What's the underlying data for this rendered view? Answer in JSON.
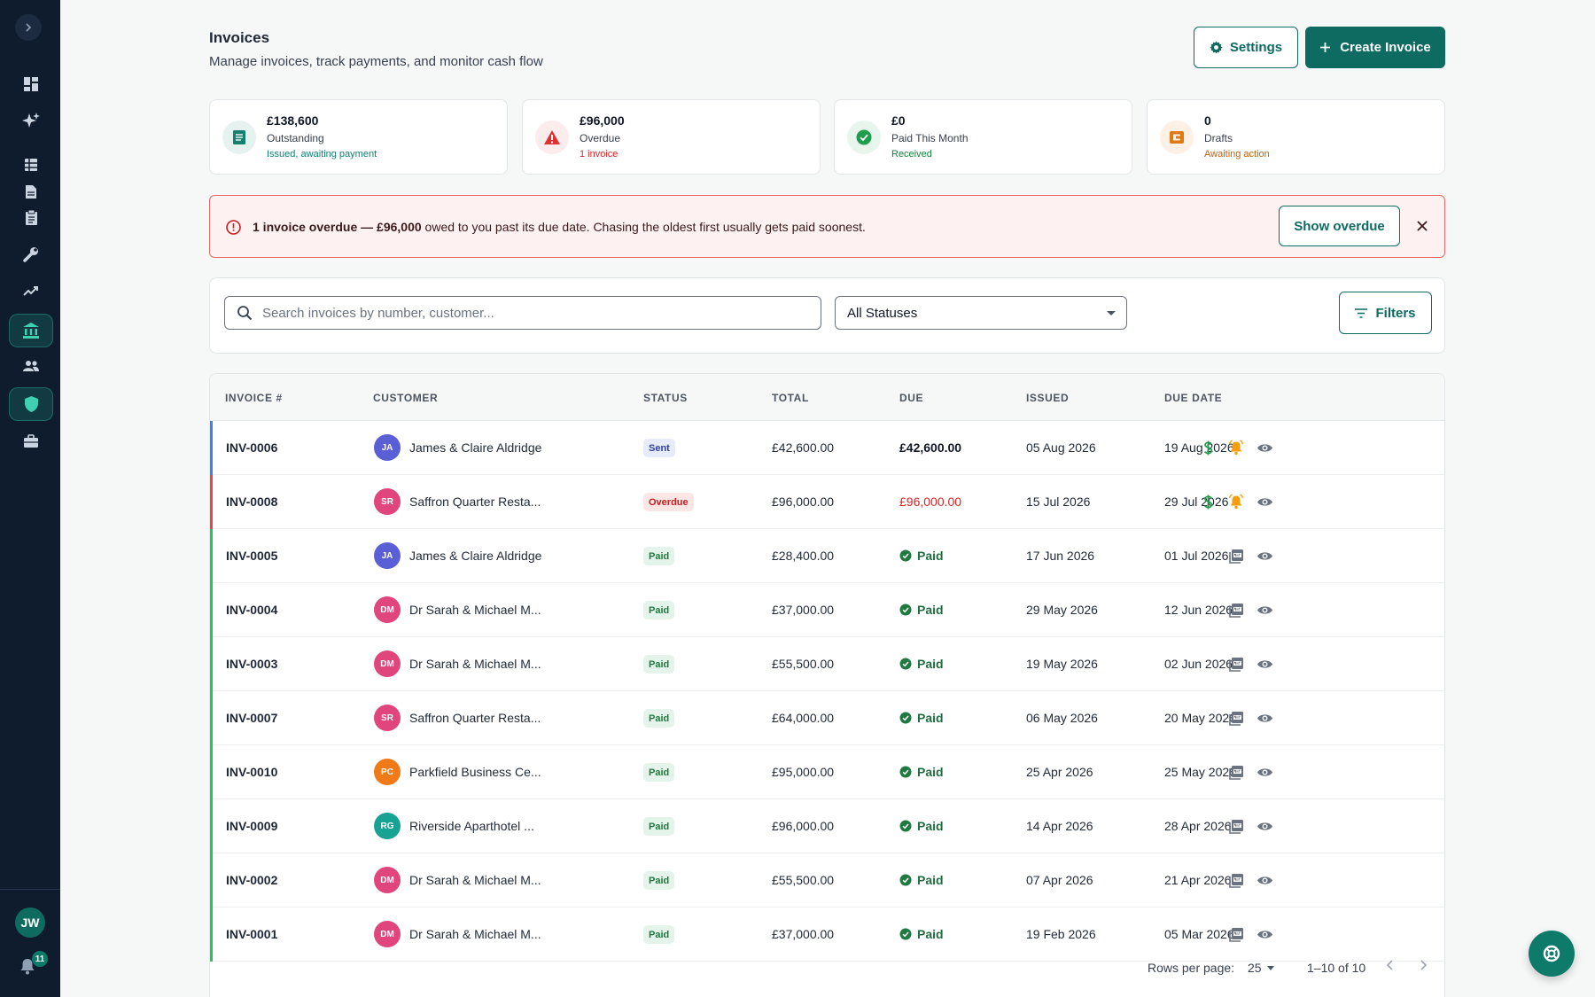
{
  "header": {
    "title": "Invoices",
    "subtitle": "Manage invoices, track payments, and monitor cash flow",
    "settings_label": "Settings",
    "create_label": "Create Invoice"
  },
  "sidebar": {
    "user_initials": "JW",
    "notification_count": "11"
  },
  "stats": [
    {
      "value": "£138,600",
      "label": "Outstanding",
      "note": "Issued, awaiting payment"
    },
    {
      "value": "£96,000",
      "label": "Overdue",
      "note": "1 invoice"
    },
    {
      "value": "£0",
      "label": "Paid This Month",
      "note": "Received"
    },
    {
      "value": "0",
      "label": "Drafts",
      "note": "Awaiting action"
    }
  ],
  "alert": {
    "bold": "1 invoice overdue — £96,000",
    "text": " owed to you past its due date. Chasing the oldest first usually gets paid soonest.",
    "button": "Show overdue"
  },
  "filters": {
    "search_placeholder": "Search invoices by number, customer...",
    "status_value": "All Statuses",
    "filters_label": "Filters"
  },
  "table": {
    "columns": [
      "INVOICE #",
      "CUSTOMER",
      "STATUS",
      "TOTAL",
      "DUE",
      "ISSUED",
      "DUE DATE"
    ],
    "rows": [
      {
        "inv": "INV-0006",
        "initials": "JA",
        "customer": "James & Claire Aldridge",
        "status": "Sent",
        "total": "£42,600.00",
        "due": "£42,600.00",
        "issued": "05 Aug 2026",
        "due_date": "19 Aug 2026"
      },
      {
        "inv": "INV-0008",
        "initials": "SR",
        "customer": "Saffron Quarter Resta...",
        "status": "Overdue",
        "total": "£96,000.00",
        "due": "£96,000.00",
        "issued": "15 Jul 2026",
        "due_date": "29 Jul 2026"
      },
      {
        "inv": "INV-0005",
        "initials": "JA",
        "customer": "James & Claire Aldridge",
        "status": "Paid",
        "total": "£28,400.00",
        "due": "Paid",
        "issued": "17 Jun 2026",
        "due_date": "01 Jul 2026"
      },
      {
        "inv": "INV-0004",
        "initials": "DM",
        "customer": "Dr Sarah & Michael M...",
        "status": "Paid",
        "total": "£37,000.00",
        "due": "Paid",
        "issued": "29 May 2026",
        "due_date": "12 Jun 2026"
      },
      {
        "inv": "INV-0003",
        "initials": "DM",
        "customer": "Dr Sarah & Michael M...",
        "status": "Paid",
        "total": "£55,500.00",
        "due": "Paid",
        "issued": "19 May 2026",
        "due_date": "02 Jun 2026"
      },
      {
        "inv": "INV-0007",
        "initials": "SR",
        "customer": "Saffron Quarter Resta...",
        "status": "Paid",
        "total": "£64,000.00",
        "due": "Paid",
        "issued": "06 May 2026",
        "due_date": "20 May 2026"
      },
      {
        "inv": "INV-0010",
        "initials": "PC",
        "customer": "Parkfield Business Ce...",
        "status": "Paid",
        "total": "£95,000.00",
        "due": "Paid",
        "issued": "25 Apr 2026",
        "due_date": "25 May 2026"
      },
      {
        "inv": "INV-0009",
        "initials": "RG",
        "customer": "Riverside Aparthotel ...",
        "status": "Paid",
        "total": "£96,000.00",
        "due": "Paid",
        "issued": "14 Apr 2026",
        "due_date": "28 Apr 2026"
      },
      {
        "inv": "INV-0002",
        "initials": "DM",
        "customer": "Dr Sarah & Michael M...",
        "status": "Paid",
        "total": "£55,500.00",
        "due": "Paid",
        "issued": "07 Apr 2026",
        "due_date": "21 Apr 2026"
      },
      {
        "inv": "INV-0001",
        "initials": "DM",
        "customer": "Dr Sarah & Michael M...",
        "status": "Paid",
        "total": "£37,000.00",
        "due": "Paid",
        "issued": "19 Feb 2026",
        "due_date": "05 Mar 2026"
      }
    ]
  },
  "pagination": {
    "rows_per_page_label": "Rows per page:",
    "rows_per_page": "25",
    "range": "1–10 of 10"
  },
  "colors": {
    "brand": "#0e6b62",
    "overdue": "#dc2626",
    "paid": "#16a34a",
    "sent": "#2563eb"
  },
  "icons": [
    "chevron-right-icon",
    "dashboard-icon",
    "sparkle-icon",
    "grid-icon",
    "document-icon",
    "clipboard-icon",
    "wrench-icon",
    "trending-icon",
    "bank-icon",
    "people-icon",
    "shield-icon",
    "briefcase-icon",
    "bell-icon",
    "gear-icon",
    "plus-icon",
    "search-icon",
    "filter-icon",
    "dollar-icon",
    "alarm-icon",
    "eye-icon",
    "pdf-icon",
    "support-icon"
  ]
}
